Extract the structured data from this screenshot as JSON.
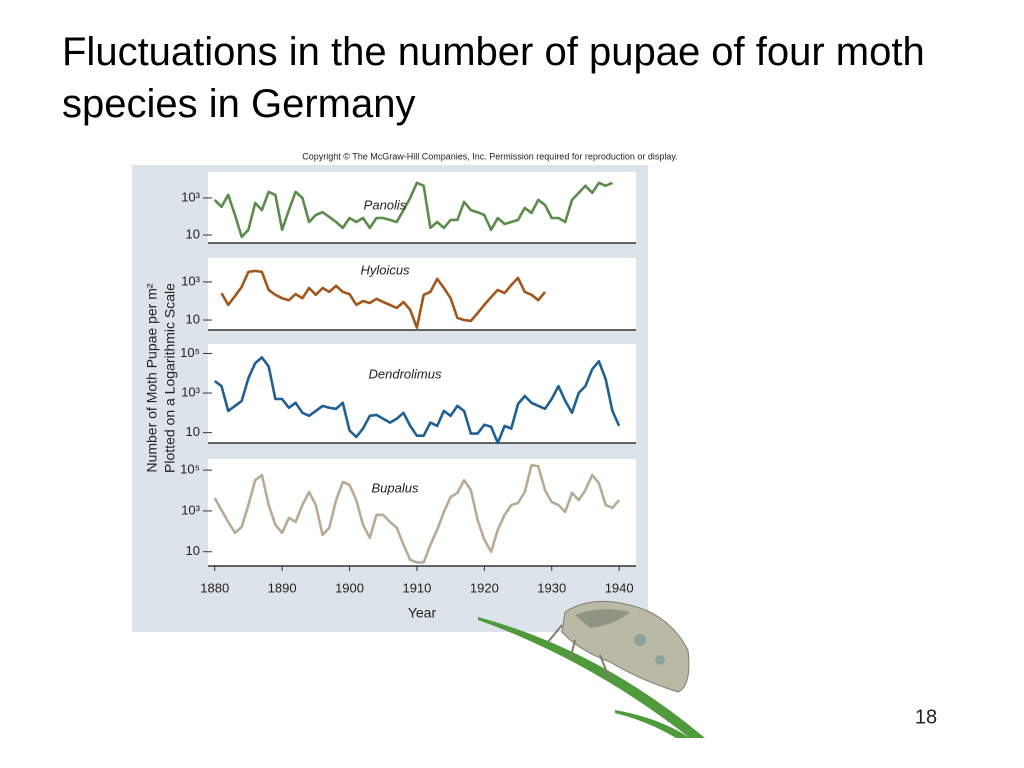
{
  "title": "Fluctuations in the number of pupae of four moth species in Germany",
  "copyright": "Copyright © The McGraw-Hill Companies, Inc. Permission required for reproduction or display.",
  "y_axis_label": [
    "Number of Moth Pupae per m²",
    "Plotted on a Logarithmic Scale"
  ],
  "page_number": "18",
  "chart_data": [
    {
      "type": "line",
      "log_y": true,
      "xlim": [
        1879,
        1942.5
      ],
      "ylim": [
        3.7,
        25000
      ],
      "yticks": [
        10,
        {
          "value": 1000,
          "label": "10³"
        }
      ],
      "x": [
        1880,
        1881,
        1882,
        1883,
        1884,
        1885,
        1886,
        1887,
        1888,
        1889,
        1890,
        1891,
        1892,
        1893,
        1894,
        1895,
        1896,
        1897,
        1898,
        1899,
        1900,
        1901,
        1902,
        1903,
        1904,
        1905,
        1906,
        1907,
        1908,
        1909,
        1910,
        1911,
        1912,
        1913,
        1914,
        1915,
        1916,
        1917,
        1918,
        1919,
        1920,
        1921,
        1922,
        1923,
        1924,
        1925,
        1926,
        1927,
        1928,
        1929,
        1930,
        1931,
        1932,
        1933,
        1934,
        1935,
        1936,
        1937,
        1938,
        1939
      ],
      "series": [
        {
          "name": "Panolis",
          "color": "#5b8c4b",
          "values": [
            780,
            330,
            1450,
            120,
            8,
            19,
            540,
            220,
            2100,
            1450,
            19,
            220,
            2100,
            1000,
            50,
            120,
            170,
            95,
            50,
            24,
            83,
            50,
            83,
            24,
            83,
            83,
            65,
            50,
            220,
            1000,
            6500,
            4500,
            24,
            50,
            24,
            65,
            65,
            610,
            220,
            170,
            120,
            19,
            83,
            39,
            50,
            65,
            290,
            155,
            780,
            420,
            83,
            83,
            50,
            780,
            1860,
            4500,
            1860,
            6500,
            4500,
            6500
          ]
        }
      ]
    },
    {
      "type": "line",
      "log_y": true,
      "xlim": [
        1879,
        1942.5
      ],
      "ylim": [
        3,
        18000
      ],
      "yticks": [
        10,
        {
          "value": 1000,
          "label": "10³"
        }
      ],
      "x": [
        1881,
        1882,
        1883,
        1884,
        1885,
        1886,
        1887,
        1888,
        1889,
        1890,
        1891,
        1892,
        1893,
        1894,
        1895,
        1896,
        1897,
        1898,
        1899,
        1900,
        1901,
        1902,
        1903,
        1904,
        1905,
        1906,
        1907,
        1908,
        1909,
        1910,
        1911,
        1912,
        1913,
        1914,
        1915,
        1916,
        1917,
        1918,
        1919,
        1920,
        1921,
        1922,
        1923,
        1924,
        1925,
        1926,
        1927,
        1928,
        1929
      ],
      "series": [
        {
          "name": "Hyloicus",
          "color": "#a3561b",
          "values": [
            260,
            62,
            180,
            550,
            3350,
            3800,
            3350,
            380,
            210,
            140,
            110,
            230,
            140,
            480,
            210,
            480,
            300,
            620,
            300,
            230,
            62,
            100,
            78,
            130,
            88,
            62,
            43,
            88,
            34,
            4,
            210,
            300,
            1440,
            480,
            140,
            13,
            10,
            9,
            23,
            62,
            160,
            380,
            260,
            690,
            1620,
            300,
            210,
            110,
            300
          ]
        }
      ]
    },
    {
      "type": "line",
      "log_y": true,
      "xlim": [
        1879,
        1942.5
      ],
      "ylim": [
        3,
        300000
      ],
      "yticks": [
        10,
        {
          "value": 1000,
          "label": "10³"
        },
        {
          "value": 100000,
          "label": "10⁵"
        }
      ],
      "x": [
        1880,
        1881,
        1882,
        1883,
        1884,
        1885,
        1886,
        1887,
        1888,
        1889,
        1890,
        1891,
        1892,
        1893,
        1894,
        1895,
        1896,
        1897,
        1898,
        1899,
        1900,
        1901,
        1902,
        1903,
        1904,
        1905,
        1906,
        1907,
        1908,
        1909,
        1910,
        1911,
        1912,
        1913,
        1914,
        1915,
        1916,
        1917,
        1918,
        1919,
        1920,
        1921,
        1922,
        1923,
        1924,
        1925,
        1926,
        1927,
        1928,
        1929,
        1930,
        1931,
        1932,
        1933,
        1934,
        1935,
        1936,
        1937,
        1938,
        1939,
        1940
      ],
      "series": [
        {
          "name": "Dendrolimus",
          "color": "#1f5f94",
          "values": [
            4000,
            2240,
            126,
            224,
            400,
            5600,
            32000,
            63000,
            22000,
            500,
            500,
            180,
            320,
            100,
            71,
            126,
            224,
            180,
            160,
            320,
            13,
            6,
            16,
            71,
            79,
            50,
            32,
            50,
            100,
            22,
            7,
            7,
            32,
            22,
            126,
            71,
            224,
            126,
            9,
            9,
            25,
            20,
            3,
            22,
            16,
            280,
            710,
            320,
            224,
            160,
            500,
            2240,
            400,
            100,
            1000,
            2240,
            16000,
            40000,
            5000,
            126,
            22
          ]
        }
      ]
    },
    {
      "type": "line",
      "log_y": true,
      "xlim": [
        1879,
        1942.5
      ],
      "ylim": [
        2,
        350000
      ],
      "yticks": [
        10,
        {
          "value": 1000,
          "label": "10³"
        },
        {
          "value": 100000,
          "label": "10⁵"
        }
      ],
      "xticks": [
        1880,
        1890,
        1900,
        1910,
        1920,
        1930,
        1940
      ],
      "xlabel": "Year",
      "x": [
        1880,
        1881,
        1882,
        1883,
        1884,
        1885,
        1886,
        1887,
        1888,
        1889,
        1890,
        1891,
        1892,
        1893,
        1894,
        1895,
        1896,
        1897,
        1898,
        1899,
        1900,
        1901,
        1902,
        1903,
        1904,
        1905,
        1906,
        1907,
        1908,
        1909,
        1910,
        1911,
        1912,
        1913,
        1914,
        1915,
        1916,
        1917,
        1918,
        1919,
        1920,
        1921,
        1922,
        1923,
        1924,
        1925,
        1926,
        1927,
        1928,
        1929,
        1930,
        1931,
        1932,
        1933,
        1934,
        1935,
        1936,
        1937,
        1938,
        1939,
        1940
      ],
      "series": [
        {
          "name": "Bupalus",
          "color": "#b9aa93",
          "values": [
            4300,
            1100,
            290,
            85,
            165,
            1950,
            32000,
            57000,
            1950,
            210,
            85,
            455,
            290,
            1950,
            8500,
            1950,
            67,
            150,
            3400,
            26000,
            19000,
            3400,
            210,
            48,
            640,
            640,
            290,
            150,
            22,
            4,
            3,
            3,
            22,
            120,
            900,
            4800,
            7600,
            32000,
            10500,
            360,
            39,
            10,
            120,
            640,
            1950,
            2450,
            8500,
            175000,
            155000,
            10500,
            2750,
            1950,
            900,
            7600,
            3400,
            10500,
            57000,
            23000,
            1950,
            1400,
            3400
          ]
        }
      ]
    }
  ]
}
